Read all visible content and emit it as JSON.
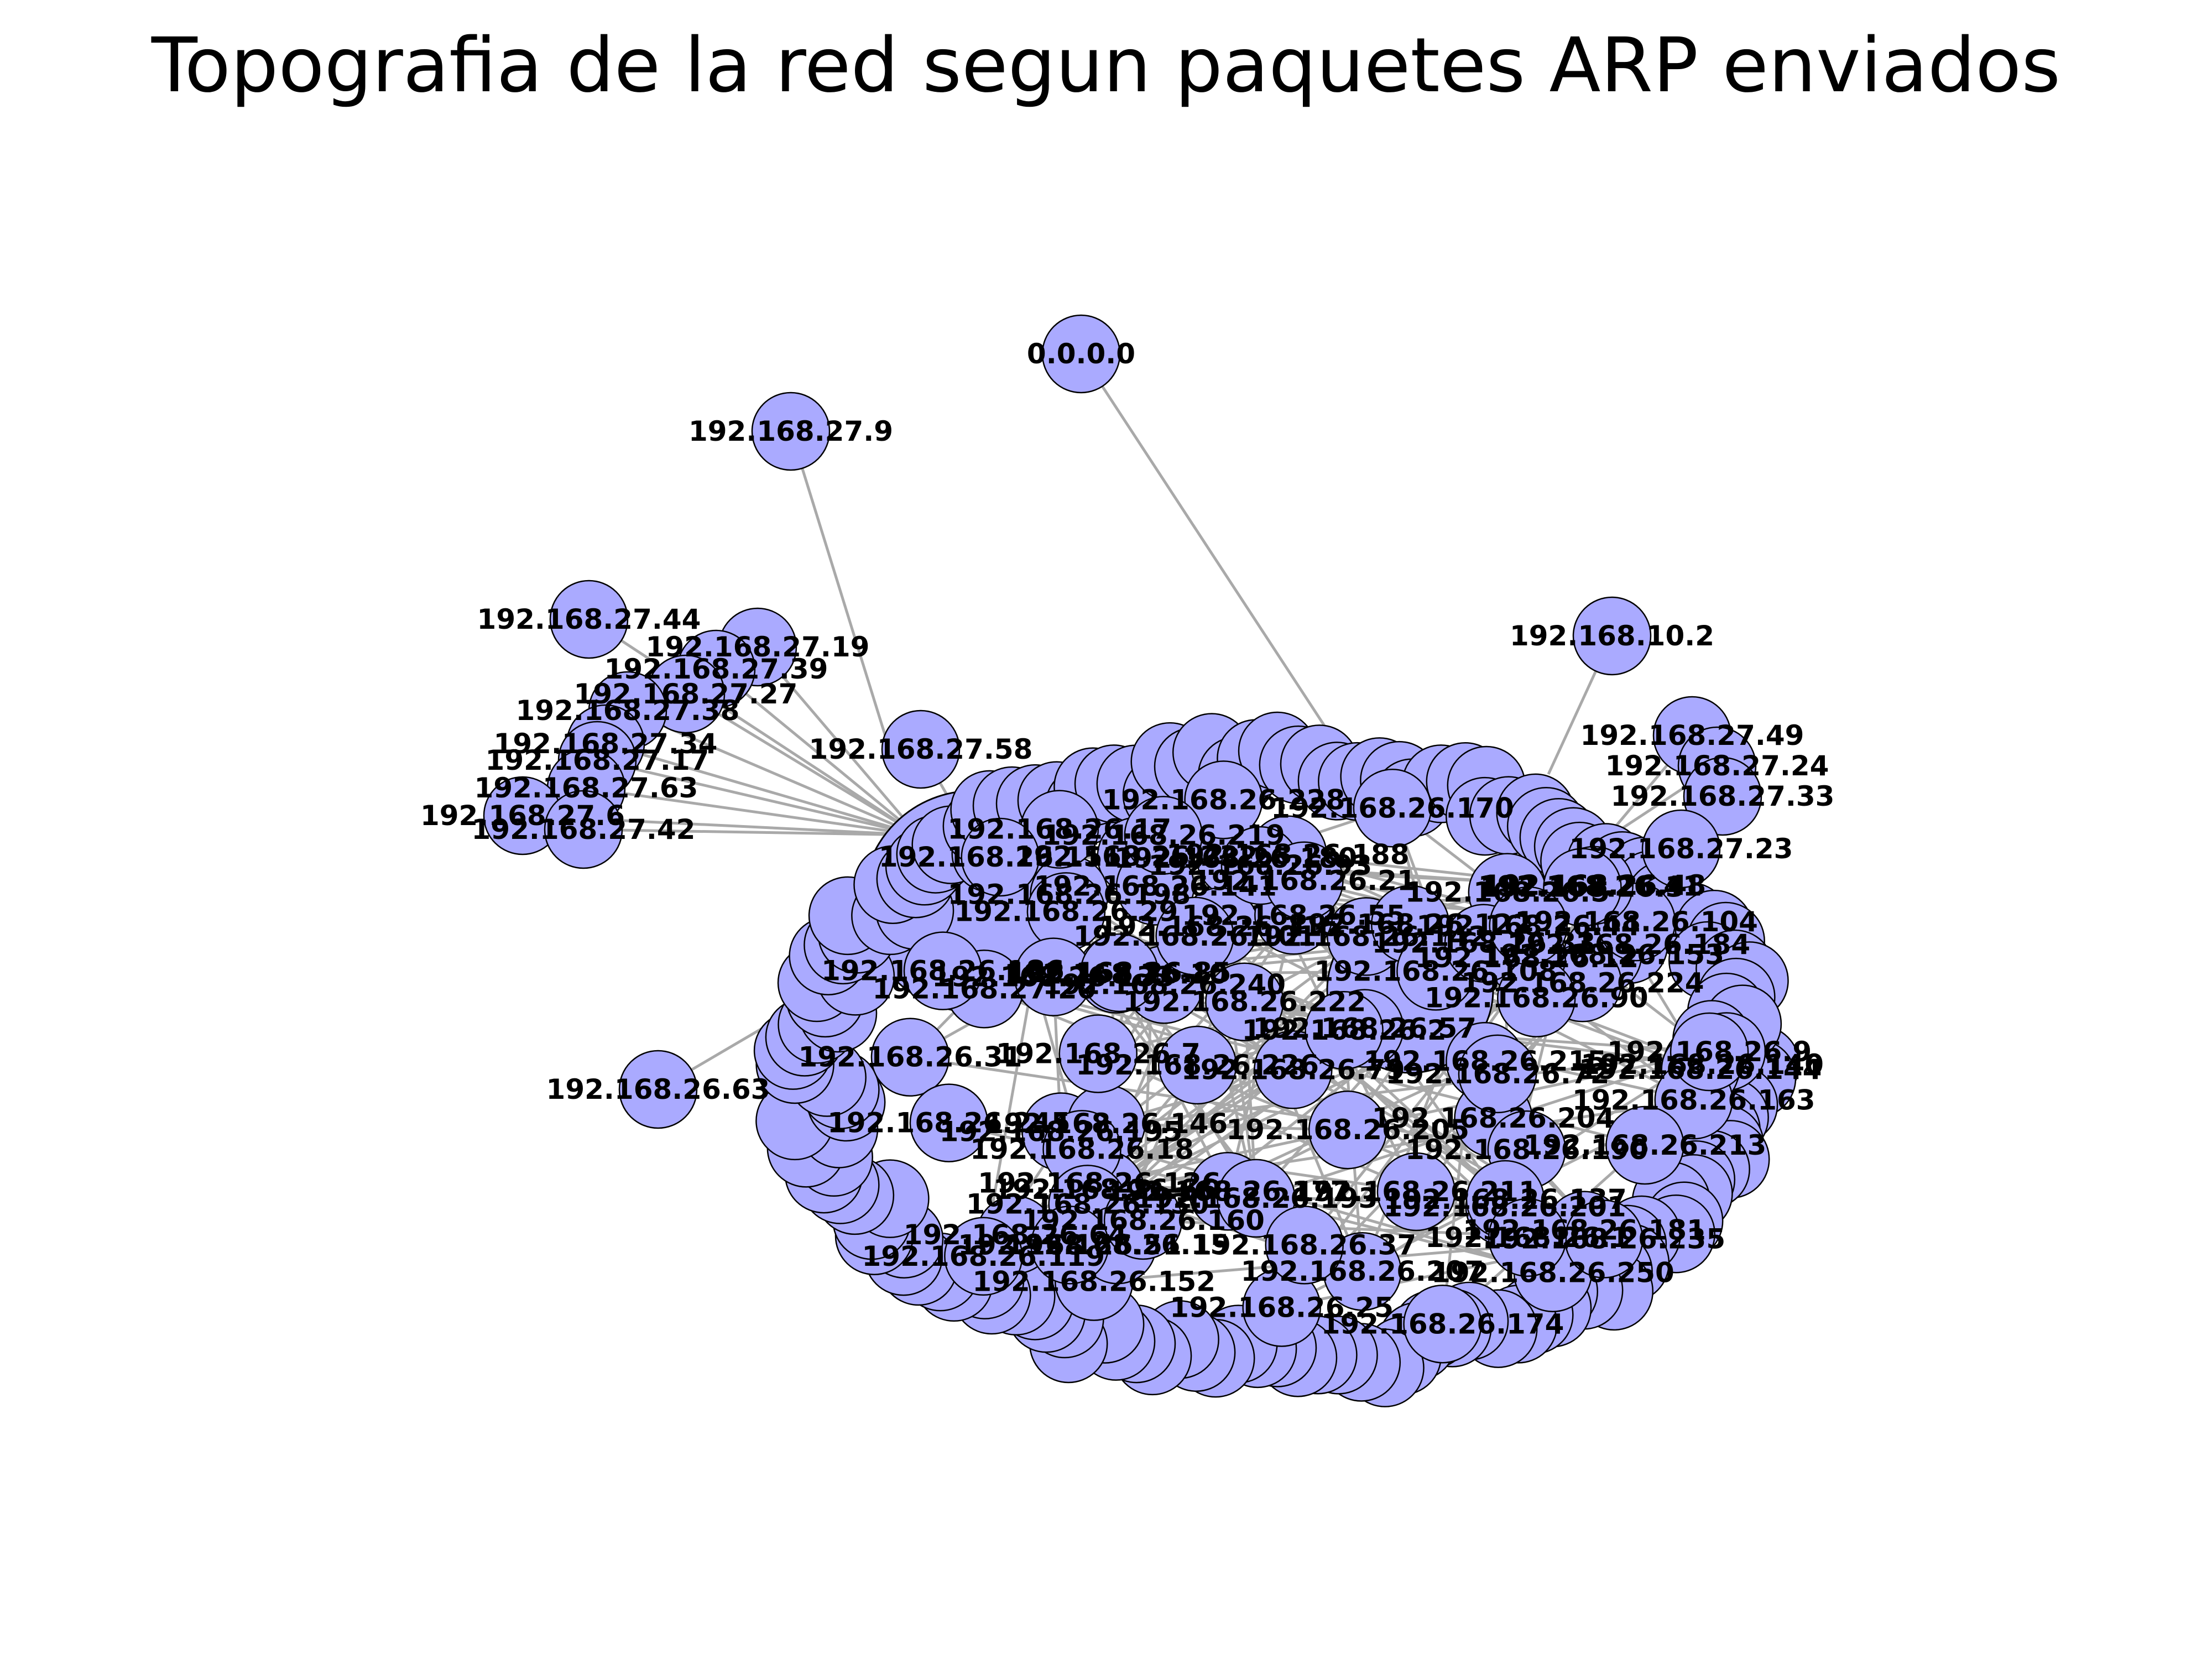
{
  "title": "Topografia de la red segun paquetes ARP enviados",
  "colors": {
    "node_fill": "#aaaaff",
    "node_stroke": "#000000",
    "edge": "#a9a9a9"
  },
  "outer_nodes": [
    {
      "id": "0.0.0.0",
      "label": "0.0.0.0"
    },
    {
      "id": "192.168.27.9",
      "label": "192.168.27.9"
    },
    {
      "id": "192.168.10.2",
      "label": "192.168.10.2"
    },
    {
      "id": "192.168.27.44",
      "label": "192.168.27.44"
    },
    {
      "id": "192.168.27.19",
      "label": "192.168.27.19"
    },
    {
      "id": "192.168.27.39",
      "label": "192.168.27.39"
    },
    {
      "id": "192.168.27.27",
      "label": "192.168.27.27"
    },
    {
      "id": "192.168.27.38",
      "label": "192.168.27.38"
    },
    {
      "id": "192.168.27.34",
      "label": "192.168.27.34"
    },
    {
      "id": "192.168.27.17",
      "label": "192.168.27.17"
    },
    {
      "id": "192.168.27.63",
      "label": "192.168.27.63"
    },
    {
      "id": "192.168.27.6",
      "label": "192.168.27.6"
    },
    {
      "id": "192.168.27.42",
      "label": "192.168.27.42"
    },
    {
      "id": "192.168.27.58",
      "label": "192.168.27.58"
    },
    {
      "id": "192.168.27.49",
      "label": "192.168.27.49"
    },
    {
      "id": "192.168.27.24",
      "label": "192.168.27.24"
    },
    {
      "id": "192.168.27.33",
      "label": "192.168.27.33"
    },
    {
      "id": "192.168.27.23",
      "label": "192.168.27.23"
    },
    {
      "id": "192.168.26.63",
      "label": "192.168.26.63"
    }
  ],
  "cluster_labels": [
    "192.168.26.140",
    "192.168.26.177",
    "192.168.26.180",
    "192.168.26.152",
    "192.168.26.188",
    "192.168.26.232",
    "192.168.26.142",
    "192.168.26.64",
    "192.168.26.222",
    "192.168.26.141",
    "192.168.26.184",
    "192.168.26.201",
    "192.168.26.153",
    "192.168.26.198",
    "192.168.26.104",
    "192.168.26.126",
    "192.168.26.122",
    "192.168.26.211",
    "192.168.26.195",
    "192.168.26.224",
    "192.168.26.228",
    "192.168.26.204",
    "192.168.27.20",
    "192.168.26.146",
    "192.168.26.57",
    "192.168.26.66",
    "192.168.26.17",
    "192.168.26.7",
    "192.168.26.18",
    "192.168.26.130",
    "192.168.26.15",
    "192.168.26.10",
    "192.168.26.12",
    "192.168.26.5",
    "192.168.26.29",
    "192.168.26.31",
    "192.168.26.90",
    "192.168.26.115",
    "192.168.26.133",
    "192.168.26.160",
    "192.168.26.170",
    "192.168.26.181",
    "192.168.26.190",
    "192.168.26.205",
    "192.168.26.215",
    "192.168.26.240",
    "192.168.26.245",
    "192.168.26.250",
    "192.168.26.41",
    "192.168.26.48",
    "192.168.26.55",
    "192.168.26.72",
    "192.168.26.79",
    "192.168.26.85",
    "192.168.26.93",
    "192.168.26.101",
    "192.168.26.108",
    "192.168.26.119",
    "192.168.26.137",
    "192.168.26.144",
    "192.168.26.151",
    "192.168.26.163",
    "192.168.26.174",
    "192.168.26.186",
    "192.168.26.193",
    "192.168.26.207",
    "192.168.26.213",
    "192.168.26.219",
    "192.168.26.226",
    "192.168.26.235",
    "192.168.26.1",
    "192.168.26.2",
    "192.168.26.3",
    "192.168.26.9",
    "192.168.26.21",
    "192.168.26.25",
    "192.168.26.33",
    "192.168.26.37",
    "192.168.26.44",
    "192.168.26.51"
  ]
}
